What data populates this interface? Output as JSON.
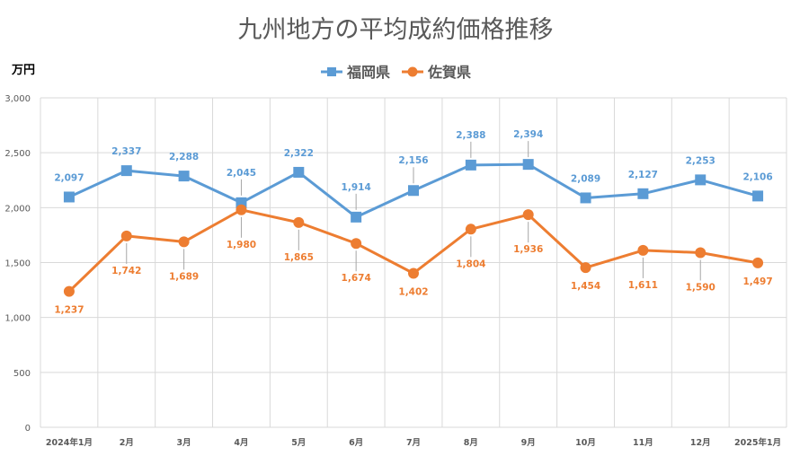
{
  "colors": {
    "fukuoka": "#5B9BD5",
    "saga": "#ED7D31",
    "grid": "#D9D9D9",
    "leader": "#A6A6A6",
    "text": "#595959"
  },
  "chart_data": {
    "type": "line",
    "title": "九州地方の平均成約価格推移",
    "ylabel": "万円",
    "xlabel": "",
    "ylim": [
      0,
      3000
    ],
    "yticks": [
      0,
      500,
      1000,
      1500,
      2000,
      2500,
      3000
    ],
    "ytick_labels": [
      "0",
      "500",
      "1,000",
      "1,500",
      "2,000",
      "2,500",
      "3,000"
    ],
    "categories": [
      "2024年1月",
      "2月",
      "3月",
      "4月",
      "5月",
      "6月",
      "7月",
      "8月",
      "9月",
      "10月",
      "11月",
      "12月",
      "2025年1月"
    ],
    "legend_position": "top",
    "grid": "vertical and horizontal",
    "series": [
      {
        "name": "福岡県",
        "marker": "square",
        "color": "#5B9BD5",
        "values": [
          2097,
          2337,
          2288,
          2045,
          2322,
          1914,
          2156,
          2388,
          2394,
          2089,
          2127,
          2253,
          2106
        ],
        "labels": [
          "2,097",
          "2,337",
          "2,288",
          "2,045",
          "2,322",
          "1,914",
          "2,156",
          "2,388",
          "2,394",
          "2,089",
          "2,127",
          "2,253",
          "2,106"
        ]
      },
      {
        "name": "佐賀県",
        "marker": "circle",
        "color": "#ED7D31",
        "values": [
          1237,
          1742,
          1689,
          1980,
          1865,
          1674,
          1402,
          1804,
          1936,
          1454,
          1611,
          1590,
          1497
        ],
        "labels": [
          "1,237",
          "1,742",
          "1,689",
          "1,980",
          "1,865",
          "1,674",
          "1,402",
          "1,804",
          "1,936",
          "1,454",
          "1,611",
          "1,590",
          "1,497"
        ]
      }
    ]
  }
}
